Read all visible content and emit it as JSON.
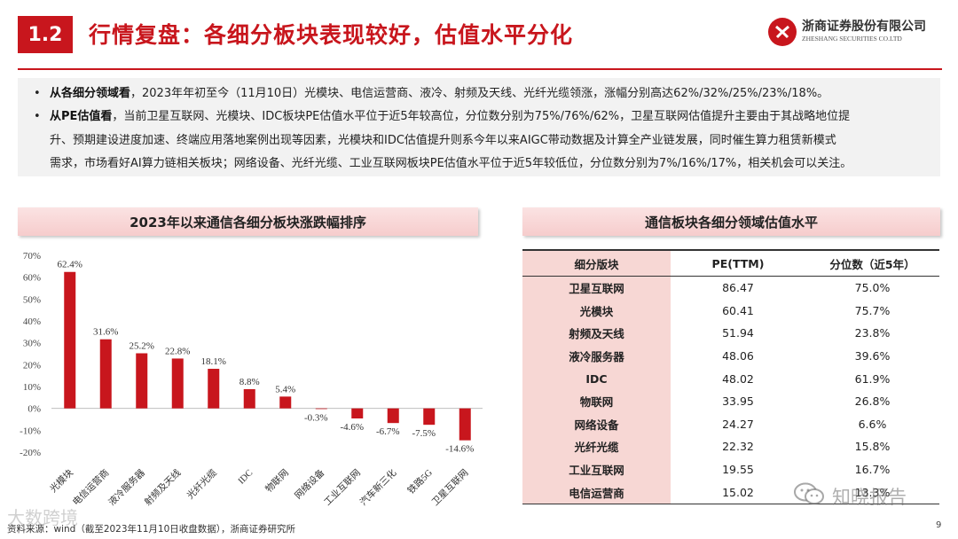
{
  "header": {
    "section_no": "1.2",
    "title": "行情复盘：各细分板块表现较好，估值水平分化",
    "logo_cn": "浙商证券股份有限公司",
    "logo_en": "ZHESHANG SECURITIES CO.LTD"
  },
  "bullets": [
    {
      "lead": "从各细分领域看",
      "text": "，2023年年初至今（11月10日）光模块、电信运营商、液冷、射频及天线、光纤光缆领涨，涨幅分别高达62%/32%/25%/23%/18%。"
    },
    {
      "lead": "从PE估值看",
      "line1": "，当前卫星互联网、光模块、IDC板块PE估值水平位于近5年较高位，分位数分别为75%/76%/62%，卫星互联网估值提升主要由于其战略地位提",
      "line2": "升、预期建设进度加速、终端应用落地案例出现等因素，光模块和IDC估值提升则系今年以来AIGC带动数据及计算全产业链发展，同时催生算力租赁新模式",
      "line3": "需求，市场看好AI算力链相关板块；网络设备、光纤光缆、工业互联网板块PE估值水平位于近5年较低位，分位数分别为7%/16%/17%，相关机会可以关注。"
    }
  ],
  "left_panel": {
    "title": "2023年以来通信各细分板块涨跌幅排序"
  },
  "right_panel": {
    "title": "通信板块各细分领域估值水平"
  },
  "chart_data": {
    "type": "bar",
    "title": "2023年以来通信各细分板块涨跌幅排序",
    "categories": [
      "光模块",
      "电信运营商",
      "液冷服务器",
      "射频及天线",
      "光纤光缆",
      "IDC",
      "物联网",
      "网络设备",
      "工业互联网",
      "汽车新三化",
      "铁路5G",
      "卫星互联网"
    ],
    "values": [
      62.4,
      31.6,
      25.2,
      22.8,
      18.1,
      8.8,
      5.4,
      -0.3,
      -4.6,
      -6.7,
      -7.5,
      -14.6
    ],
    "value_labels": [
      "62.4%",
      "31.6%",
      "25.2%",
      "22.8%",
      "18.1%",
      "8.8%",
      "5.4%",
      "-0.3%",
      "-4.6%",
      "-6.7%",
      "-7.5%",
      "-14.6%"
    ],
    "yticks": [
      "70%",
      "60%",
      "50%",
      "40%",
      "30%",
      "20%",
      "10%",
      "0%",
      "-10%",
      "-20%"
    ],
    "ylim": [
      -20,
      70
    ],
    "bar_color": "#c8161d",
    "grid": false
  },
  "valuation_table": {
    "headers": [
      "细分版块",
      "PE(TTM)",
      "分位数（近5年）"
    ],
    "rows": [
      [
        "卫星互联网",
        "86.47",
        "75.0%"
      ],
      [
        "光模块",
        "60.41",
        "75.7%"
      ],
      [
        "射频及天线",
        "51.94",
        "23.8%"
      ],
      [
        "液冷服务器",
        "48.06",
        "39.6%"
      ],
      [
        "IDC",
        "48.02",
        "61.9%"
      ],
      [
        "物联网",
        "33.95",
        "26.8%"
      ],
      [
        "网络设备",
        "24.27",
        "6.6%"
      ],
      [
        "光纤光缆",
        "22.32",
        "15.8%"
      ],
      [
        "工业互联网",
        "19.55",
        "16.7%"
      ],
      [
        "电信运营商",
        "15.02",
        "13.3%"
      ]
    ]
  },
  "footer": {
    "source": "资料来源：wind（截至2023年11月10日收盘数据），浙商证券研究所",
    "page_number": "9",
    "watermark_left": "大数跨境",
    "watermark_right": "知晓报告"
  },
  "colors": {
    "brand_red": "#c8161d",
    "banner_pink": "#f8d6d6",
    "table_first_col": "#f7d7d4"
  }
}
